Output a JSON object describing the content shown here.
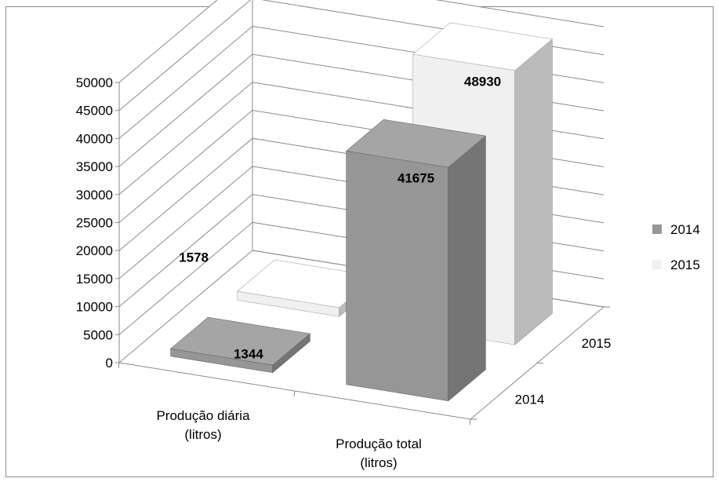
{
  "chart_data": {
    "type": "bar",
    "subtype": "3d-clustered-column",
    "categories": [
      "Produção diária\n(litros)",
      "Produção total\n(litros)"
    ],
    "series": [
      {
        "name": "2014",
        "values": [
          1344,
          41675
        ],
        "color": "#969696"
      },
      {
        "name": "2015",
        "values": [
          1578,
          48930
        ],
        "color": "#f0f0f0"
      }
    ],
    "depth_labels": [
      "2014",
      "2015"
    ],
    "ylim": [
      0,
      50000
    ],
    "yticks": [
      "0",
      "5000",
      "10000",
      "15000",
      "20000",
      "25000",
      "30000",
      "35000",
      "40000",
      "45000",
      "50000"
    ],
    "data_labels": [
      "1344",
      "41675",
      "1578",
      "48930"
    ],
    "legend_position": "right",
    "grid": true,
    "title": "",
    "xlabel": "",
    "ylabel": ""
  }
}
